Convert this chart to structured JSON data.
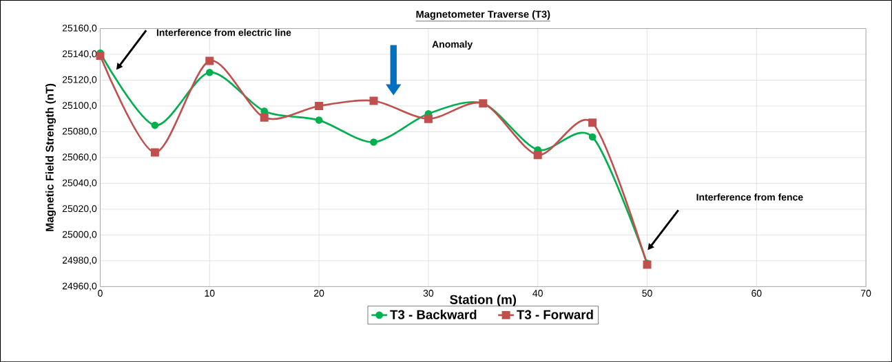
{
  "chart_data": {
    "type": "line",
    "title": "Magnetometer Traverse (T3)",
    "xlabel": "Station (m)",
    "ylabel": "Magnetic Field Strength (nT)",
    "x": [
      0,
      5,
      10,
      15,
      20,
      25,
      30,
      35,
      40,
      45,
      50
    ],
    "series": [
      {
        "name": "T3 - Backward",
        "color": "#00b050",
        "marker": "circle",
        "values": [
          25141,
          25085,
          25126,
          25096,
          25089,
          25072,
          25094,
          25102,
          25066,
          25076,
          24978
        ]
      },
      {
        "name": "T3 - Forward",
        "color": "#c0504d",
        "marker": "square",
        "values": [
          25139,
          25064,
          25135,
          25091,
          25100,
          25104,
          25090,
          25102,
          25062,
          25087,
          24977
        ]
      }
    ],
    "xlim": [
      0,
      70
    ],
    "xticks": [
      0,
      10,
      20,
      30,
      40,
      50,
      60,
      70
    ],
    "ylim": [
      24960,
      25160
    ],
    "yticks": [
      {
        "value": 24960,
        "label": "24960,0"
      },
      {
        "value": 24980,
        "label": "24980,0"
      },
      {
        "value": 25000,
        "label": "25000,0"
      },
      {
        "value": 25020,
        "label": "25020,0"
      },
      {
        "value": 25040,
        "label": "25040,0"
      },
      {
        "value": 25060,
        "label": "25060,0"
      },
      {
        "value": 25080,
        "label": "25080,0"
      },
      {
        "value": 25100,
        "label": "25100,0"
      },
      {
        "value": 25120,
        "label": "25120,0"
      },
      {
        "value": 25140,
        "label": "25140,0"
      },
      {
        "value": 25160,
        "label": "25160,0"
      }
    ],
    "grid": true,
    "legend": "bottom",
    "line_style": "solid",
    "annotations": [
      "Interference from electric line",
      "Anomaly",
      "Interference from  fence"
    ]
  }
}
